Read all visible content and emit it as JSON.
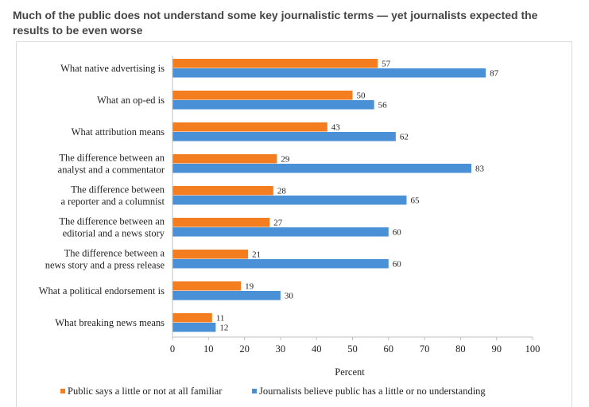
{
  "chart_data": {
    "type": "bar",
    "orientation": "horizontal",
    "title": "Much of the public does not understand some key journalistic terms — yet journalists expected the results to be even worse",
    "xlabel": "Percent",
    "ylabel": "",
    "xlim": [
      0,
      100
    ],
    "xticks": [
      0,
      10,
      20,
      30,
      40,
      50,
      60,
      70,
      80,
      90,
      100
    ],
    "categories": [
      [
        "What native advertising is"
      ],
      [
        "What an op-ed is"
      ],
      [
        "What attribution means"
      ],
      [
        "The difference between an",
        "analyst and a commentator"
      ],
      [
        "The difference between",
        "a reporter and a columnist"
      ],
      [
        "The difference between an",
        "editorial and a news story"
      ],
      [
        "The difference between a",
        "news story and a press release"
      ],
      [
        "What a political endorsement is"
      ],
      [
        "What breaking news means"
      ]
    ],
    "series": [
      {
        "name": "Public says a little or not at all familiar",
        "color": "#f47d20",
        "values": [
          57,
          50,
          43,
          29,
          28,
          27,
          21,
          19,
          11
        ]
      },
      {
        "name": "Journalists believe public has a little or no understanding",
        "color": "#4a90d6",
        "values": [
          87,
          56,
          62,
          83,
          65,
          60,
          60,
          30,
          12
        ]
      }
    ],
    "legend_position": "bottom",
    "grid": false
  }
}
